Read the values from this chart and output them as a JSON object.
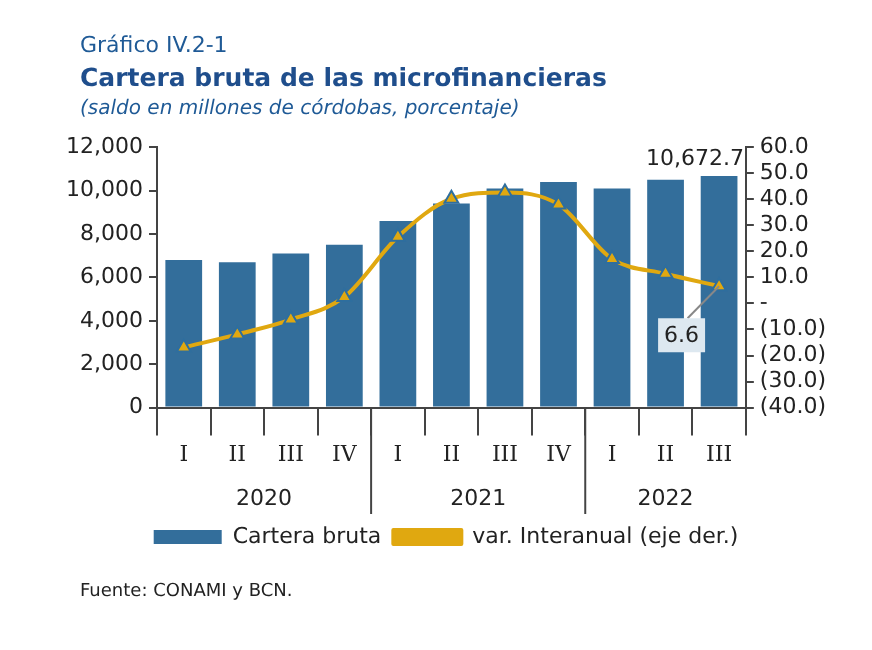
{
  "chart_data": {
    "type": "bar",
    "title": "Cartera bruta de las microfinancieras",
    "subtitle": "(saldo en millones de córdobas, porcentaje)",
    "annotations": [
      "Gráfico IV.2-1",
      "2020",
      "2021",
      "2022",
      "Fuente: CONAMI y BCN."
    ],
    "categories": [
      "I",
      "II",
      "III",
      "IV",
      "I",
      "II",
      "III",
      "IV",
      "I",
      "II",
      "III"
    ],
    "series": [
      {
        "name": "Cartera bruta",
        "color": "#336e9b",
        "values": [
          6800,
          6700,
          7100,
          7500,
          8600,
          9400,
          10100,
          10400,
          10100,
          10500,
          10672.7
        ],
        "value_labels": [
          null,
          null,
          null,
          null,
          null,
          null,
          null,
          null,
          null,
          null,
          "10,672.7"
        ]
      },
      {
        "name": "var. Interanual (eje der.)",
        "type": "line",
        "axis": "y2",
        "color": "#e0a810",
        "marker": "triangle",
        "values": [
          -16.9,
          -11.9,
          -6.2,
          2.5,
          25.6,
          40.2,
          42.6,
          38.0,
          17.1,
          11.4,
          6.6
        ],
        "value_labels": [
          null,
          null,
          null,
          null,
          null,
          null,
          null,
          null,
          null,
          null,
          "6.6"
        ]
      }
    ],
    "ylim": [
      0,
      12000
    ],
    "yticks": [
      {
        "value": 0,
        "label": "0"
      },
      {
        "value": 2000,
        "label": "2,000"
      },
      {
        "value": 4000,
        "label": "4,000"
      },
      {
        "value": 6000,
        "label": "6,000"
      },
      {
        "value": 8000,
        "label": "8,000"
      },
      {
        "value": 10000,
        "label": "10,000"
      },
      {
        "value": 12000,
        "label": "12,000"
      }
    ],
    "y2lim": [
      -40,
      60
    ],
    "y2ticks": [
      {
        "value": -40,
        "label": "(40.0)"
      },
      {
        "value": -30,
        "label": "(30.0)"
      },
      {
        "value": -20,
        "label": "(20.0)"
      },
      {
        "value": -10,
        "label": "(10.0)"
      },
      {
        "value": 0,
        "label": "-"
      },
      {
        "value": 10,
        "label": "10.0"
      },
      {
        "value": 20,
        "label": "20.0"
      },
      {
        "value": 30,
        "label": "30.0"
      },
      {
        "value": 40,
        "label": "40.0"
      },
      {
        "value": 50,
        "label": "50.0"
      },
      {
        "value": 60,
        "label": "60.0"
      }
    ],
    "grid": false,
    "legend": "bottom"
  }
}
